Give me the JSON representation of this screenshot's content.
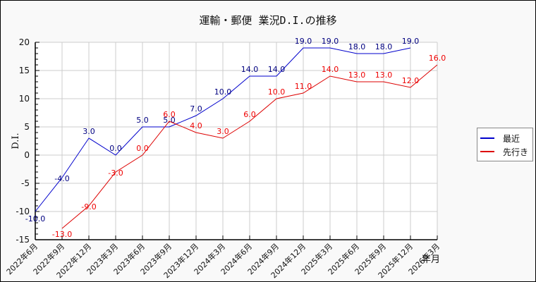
{
  "chart_data": {
    "type": "line",
    "title": "運輸・郵便 業況D.I.の推移",
    "xlabel": "年月",
    "ylabel": "D.I.",
    "ylim": [
      -15,
      20
    ],
    "yticks": [
      20,
      15,
      10,
      5,
      0,
      -5,
      -10,
      -15
    ],
    "grid": true,
    "legend_position": "right",
    "categories": [
      "2022年6月",
      "2022年9月",
      "2022年12月",
      "2023年3月",
      "2023年6月",
      "2023年9月",
      "2023年12月",
      "2024年3月",
      "2024年6月",
      "2024年9月",
      "2024年12月",
      "2025年3月",
      "2025年6月",
      "2025年9月",
      "2025年12月",
      "2026年3月"
    ],
    "series": [
      {
        "name": "最近",
        "color": "#0000cc",
        "label_color": "#000080",
        "values": [
          -10.0,
          -4.0,
          3.0,
          0.0,
          5.0,
          5.0,
          7.0,
          10.0,
          14.0,
          14.0,
          19.0,
          19.0,
          18.0,
          18.0,
          19.0,
          null
        ]
      },
      {
        "name": "先行き",
        "color": "#dd0000",
        "label_color": "#ee0000",
        "values": [
          null,
          -13.0,
          -9.0,
          -3.0,
          0.0,
          6.0,
          4.0,
          3.0,
          6.0,
          10.0,
          11.0,
          14.0,
          13.0,
          13.0,
          12.0,
          16.0
        ]
      }
    ]
  }
}
